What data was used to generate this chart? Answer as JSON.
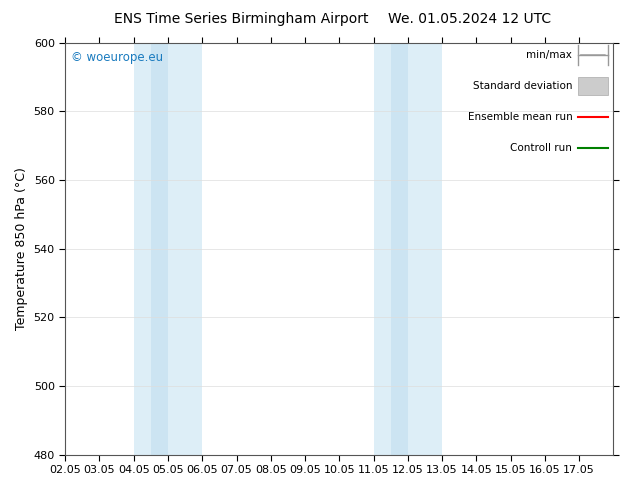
{
  "title_left": "ENS Time Series Birmingham Airport",
  "title_right": "We. 01.05.2024 12 UTC",
  "ylabel": "Temperature 850 hPa (°C)",
  "ylim": [
    480,
    600
  ],
  "yticks": [
    480,
    500,
    520,
    540,
    560,
    580,
    600
  ],
  "xlim": [
    0,
    16
  ],
  "xtick_labels": [
    "02.05",
    "03.05",
    "04.05",
    "05.05",
    "06.05",
    "07.05",
    "08.05",
    "09.05",
    "10.05",
    "11.05",
    "12.05",
    "13.05",
    "14.05",
    "15.05",
    "16.05",
    "17.05"
  ],
  "shaded_bands": [
    {
      "x_start": 2,
      "x_end": 2.5,
      "color": "#ddeef7"
    },
    {
      "x_start": 2.5,
      "x_end": 3,
      "color": "#cce4f2"
    },
    {
      "x_start": 3,
      "x_end": 4,
      "color": "#ddeef7"
    },
    {
      "x_start": 9,
      "x_end": 9.5,
      "color": "#ddeef7"
    },
    {
      "x_start": 9.5,
      "x_end": 10,
      "color": "#cce4f2"
    },
    {
      "x_start": 10,
      "x_end": 11,
      "color": "#ddeef7"
    }
  ],
  "watermark": "© woeurope.eu",
  "watermark_color": "#1a7bbf",
  "legend_entries": [
    {
      "label": "min/max",
      "color": "#999999",
      "style": "hline_with_caps"
    },
    {
      "label": "Standard deviation",
      "color": "#cccccc",
      "style": "rect"
    },
    {
      "label": "Ensemble mean run",
      "color": "red",
      "style": "line"
    },
    {
      "label": "Controll run",
      "color": "green",
      "style": "line"
    }
  ],
  "bg_color": "#ffffff",
  "grid_color": "#dddddd",
  "title_fontsize": 10,
  "tick_fontsize": 8,
  "ylabel_fontsize": 9,
  "legend_fontsize": 7.5
}
